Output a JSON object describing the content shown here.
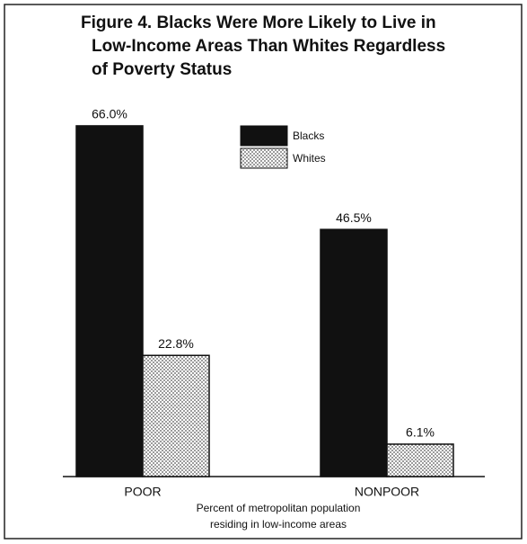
{
  "chart_data": {
    "type": "bar",
    "title": [
      "Figure 4. Blacks Were More Likely to Live in",
      "Low-Income Areas Than Whites Regardless",
      "of Poverty Status"
    ],
    "categories": [
      "POOR",
      "NONPOOR"
    ],
    "series": [
      {
        "name": "Blacks",
        "color": "#111111",
        "values": [
          66.0,
          46.5
        ],
        "value_labels": [
          "66.0%",
          "46.5%"
        ]
      },
      {
        "name": "Whites",
        "color": "#555555",
        "pattern": "dots",
        "values": [
          22.8,
          6.1
        ],
        "value_labels": [
          "22.8%",
          "6.1%"
        ]
      }
    ],
    "x_label": [
      "Percent of metropolitan population",
      "residing in low-income areas"
    ]
  }
}
